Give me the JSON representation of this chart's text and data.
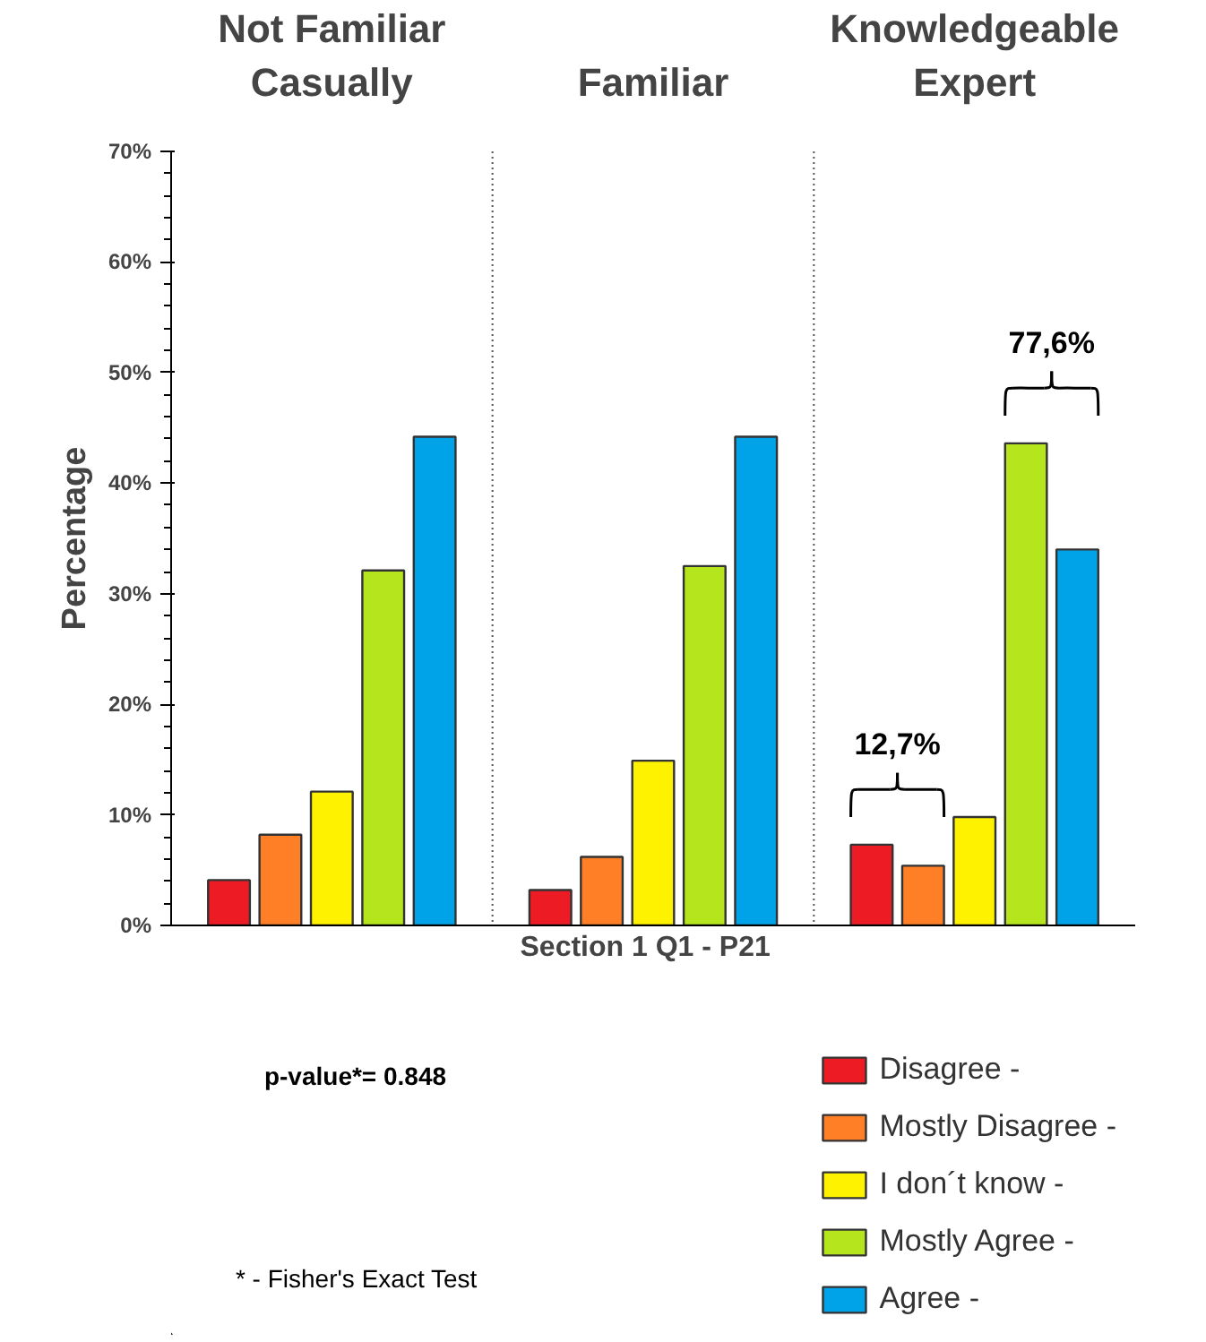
{
  "chart_data": {
    "type": "bar",
    "categories": [
      "Not Familiar\nCasually",
      "Familiar",
      "Knowledgeable\nExpert"
    ],
    "series": [
      {
        "name": "Disagree -",
        "color": "#ed1c24",
        "values": [
          4.1,
          3.2,
          7.3
        ]
      },
      {
        "name": "Mostly Disagree -",
        "color": "#ff7f27",
        "values": [
          8.2,
          6.2,
          5.4
        ]
      },
      {
        "name": "I don´t know -",
        "color": "#fff200",
        "values": [
          12.1,
          14.9,
          9.8
        ]
      },
      {
        "name": "Mostly Agree -",
        "color": "#b5e61d",
        "values": [
          32.1,
          32.5,
          43.6
        ]
      },
      {
        "name": "Agree -",
        "color": "#00a2e8",
        "values": [
          44.2,
          44.2,
          34.0
        ]
      }
    ],
    "xlabel": "Section 1 Q1  -  P21",
    "ylabel": "Percentage",
    "ylim": [
      0,
      70
    ],
    "yticks": [
      {
        "value": 0,
        "label": "0%"
      },
      {
        "value": 10,
        "label": "10%"
      },
      {
        "value": 20,
        "label": "20%"
      },
      {
        "value": 30,
        "label": "30%"
      },
      {
        "value": 40,
        "label": "40%"
      },
      {
        "value": 50,
        "label": "50%"
      },
      {
        "value": 60,
        "label": "60%"
      },
      {
        "value": 70,
        "label": "70%"
      }
    ],
    "annotations": [
      "12,7%",
      "77,6%",
      "p-value*= 0.848",
      "* - Fisher's Exact Test"
    ],
    "legend": "bottom right",
    "grid": false
  }
}
